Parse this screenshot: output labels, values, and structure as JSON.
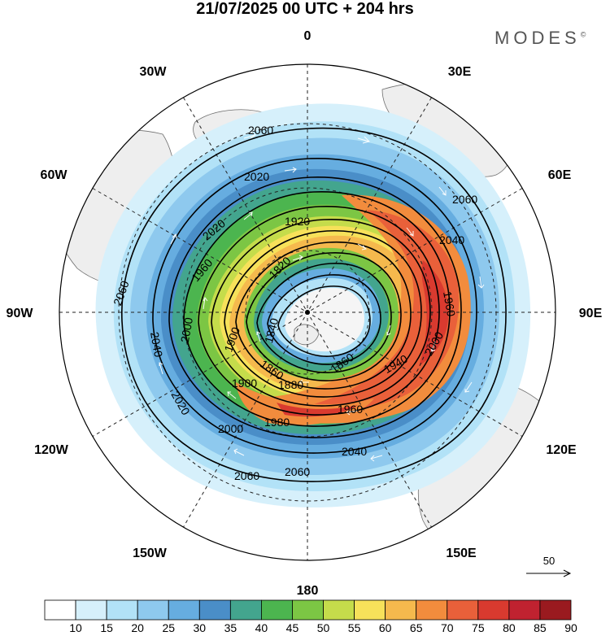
{
  "title": "21/07/2025  00 UTC  + 204 hrs",
  "brand": {
    "name": "MODES",
    "mark": "©"
  },
  "map": {
    "projection": "north-polar-stereographic",
    "meridian_labels": [
      {
        "text": "0",
        "lon": 0
      },
      {
        "text": "30E",
        "lon": 30
      },
      {
        "text": "60E",
        "lon": 60
      },
      {
        "text": "90E",
        "lon": 90
      },
      {
        "text": "120E",
        "lon": 120
      },
      {
        "text": "150E",
        "lon": 150
      },
      {
        "text": "180",
        "lon": 180
      },
      {
        "text": "150W",
        "lon": -150
      },
      {
        "text": "120W",
        "lon": -120
      },
      {
        "text": "90W",
        "lon": -90
      },
      {
        "text": "60W",
        "lon": -60
      },
      {
        "text": "30W",
        "lon": -30
      }
    ],
    "contour_labels": [
      "2060",
      "2060",
      "2060",
      "2060",
      "2060",
      "2040",
      "2040",
      "2040",
      "2020",
      "2020",
      "2020",
      "2000",
      "2000",
      "2000",
      "1980",
      "1960",
      "1960",
      "1960",
      "1940",
      "1920",
      "1900",
      "1900",
      "1880",
      "1860",
      "1860",
      "1840",
      "1820"
    ],
    "reference_vector": {
      "label": "50"
    }
  },
  "colorbar": {
    "ticks": [
      "10",
      "15",
      "20",
      "25",
      "30",
      "35",
      "40",
      "45",
      "50",
      "55",
      "60",
      "65",
      "70",
      "75",
      "80",
      "85",
      "90"
    ],
    "colors": [
      "#ffffff",
      "#d6f0fb",
      "#b2e2f7",
      "#8ec9ee",
      "#66ade0",
      "#4a8ec8",
      "#43a58e",
      "#4cb54f",
      "#7cc644",
      "#c5dc4b",
      "#f7e15a",
      "#f5b94d",
      "#f28c3d",
      "#e9603a",
      "#d93a2f",
      "#c02230",
      "#9a1a1f"
    ]
  }
}
